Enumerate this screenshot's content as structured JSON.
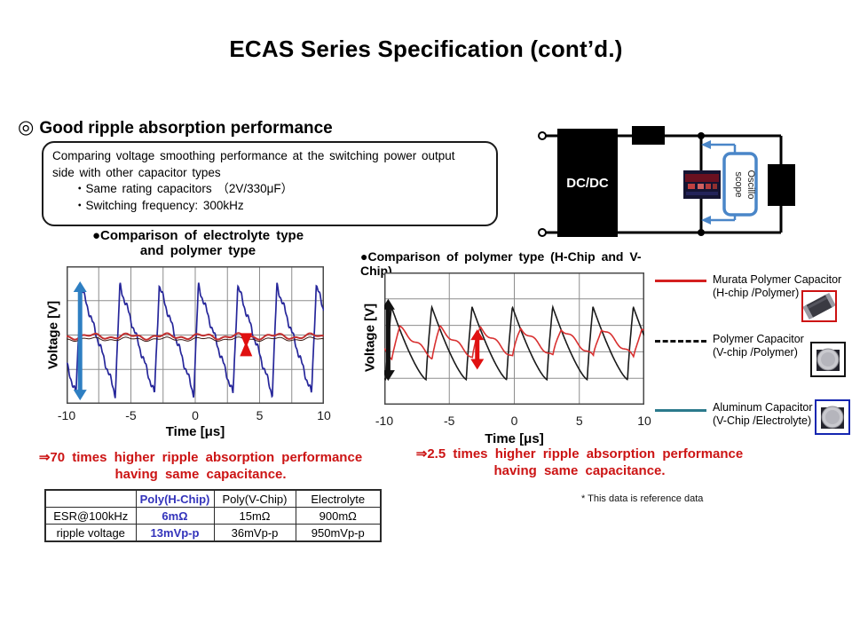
{
  "slide": {
    "title": "ECAS Series Specification (cont’d.)"
  },
  "section": {
    "marker": "◎",
    "heading": "Good ripple absorption performance"
  },
  "info_box": {
    "line1": "Comparing voltage smoothing performance at the switching power output",
    "line2": "side with other capacitor types",
    "bullet1": "・Same rating capacitors （2V/330μF）",
    "bullet2": "・Switching frequency: 300kHz"
  },
  "circuit": {
    "dcdc_label": "DC/DC",
    "scope_label_line1": "Oscillo",
    "scope_label_line2": "scope",
    "wire_color": "#000000",
    "scope_color": "#4a86c8"
  },
  "chart_data": [
    {
      "type": "line",
      "title_line1": "●Comparison of electrolyte type",
      "title_line2": "and polymer type",
      "xlabel": "Time [μs]",
      "ylabel": "Voltage [V]",
      "xlim": [
        -10,
        10
      ],
      "x_ticks": [
        -10,
        -5,
        0,
        5,
        10
      ],
      "grid": {
        "cols": 8,
        "rows": 4,
        "on": true
      },
      "series": [
        {
          "name": "Aluminum Electrolyte Capacitor (V-Chip)",
          "color": "#26269a",
          "width": 1.7,
          "shape": "sawtooth",
          "period_us": 3.05,
          "peak_at_us": -8.9,
          "peak": 0.72,
          "trough": -0.86,
          "rise_frac": 0.12,
          "jag": 0.04
        },
        {
          "name": "Polymer Capacitor (V-chip)",
          "color": "#3a1a14",
          "width": 1,
          "shape": "flat",
          "level": -0.06,
          "ripple": 0.02
        },
        {
          "name": "Murata Polymer Capacitor (H-chip)",
          "color": "#c23030",
          "width": 2,
          "shape": "flat",
          "level": -0.02,
          "ripple": 0.03
        }
      ],
      "annotations": [
        {
          "type": "v-arrow",
          "t": -8.95,
          "v1": 0.78,
          "v2": -0.95,
          "color": "#2e7fc2",
          "width": 5
        },
        {
          "type": "hourglass",
          "t": 3.95,
          "v": -0.14,
          "color": "#e01010"
        }
      ]
    },
    {
      "type": "line",
      "title": "●Comparison of polymer type (H-Chip and V-Chip)",
      "xlabel": "Time [μs]",
      "ylabel": "Voltage [V]",
      "xlim": [
        -10,
        10
      ],
      "x_ticks": [
        -10,
        -5,
        0,
        5,
        10
      ],
      "grid": {
        "cols": 4,
        "rows": 5,
        "on": true
      },
      "series": [
        {
          "name": "Polymer Capacitor (V-chip)",
          "color": "#1a1a1a",
          "width": 1.6,
          "shape": "sharkfin",
          "period_us": 3.1,
          "peak_at_us": -9.45,
          "peak": 0.48,
          "trough": -0.62,
          "rise_frac": 0.14,
          "decay_pow": 1.35
        },
        {
          "name": "Murata Polymer Capacitor (H-chip)",
          "color": "#d83030",
          "width": 1.6,
          "shape": "sharkfin",
          "period_us": 3.1,
          "peak_at_us": -8.8,
          "peak": 0.16,
          "trough": -0.28,
          "rise_frac": 0.2,
          "decay_pow": 1.0,
          "wobble": 0.035
        }
      ],
      "annotations": [
        {
          "type": "v-arrow",
          "t": -9.7,
          "v1": 0.6,
          "v2": -0.64,
          "color": "#111111",
          "width": 5
        },
        {
          "type": "v-arrow",
          "t": -2.85,
          "v1": 0.14,
          "v2": -0.47,
          "color": "#e01010",
          "width": 5
        }
      ]
    }
  ],
  "conclusions": {
    "left_line1": "⇒70 times higher ripple absorption performance",
    "left_line2": "having same capacitance.",
    "right_line1": "⇒2.5 times higher ripple absorption performance",
    "right_line2": "having same capacitance."
  },
  "legend": {
    "items": [
      {
        "label_line1": "Murata Polymer Capacitor",
        "label_line2": "(H-chip /Polymer)",
        "line_style": "solid",
        "line_width": 3,
        "color": "#d42020",
        "photo": "chip-capacitor",
        "photo_border": "#cc1111"
      },
      {
        "label_line1": "Polymer Capacitor",
        "label_line2": "(V-chip /Polymer)",
        "line_style": "dashed",
        "line_width": 3,
        "color": "#111111",
        "photo": "can-capacitor",
        "photo_border": "#111111"
      },
      {
        "label_line1": "Aluminum Capacitor",
        "label_line2": "(V-Chip /Electrolyte)",
        "line_style": "solid",
        "line_width": 2.5,
        "color": "#2b7a8c",
        "photo": "can-capacitor",
        "photo_border": "#1526b0"
      }
    ]
  },
  "table": {
    "headers": [
      "",
      "Poly(H-Chip)",
      "Poly(V-Chip)",
      "Electrolyte"
    ],
    "rows": [
      [
        "ESR@100kHz",
        "6mΩ",
        "15mΩ",
        "900mΩ"
      ],
      [
        "ripple voltage",
        "13mVp-p",
        "36mVp-p",
        "950mVp-p"
      ]
    ],
    "highlight_color": "#3333bb"
  },
  "footnote": "* This data is reference data"
}
